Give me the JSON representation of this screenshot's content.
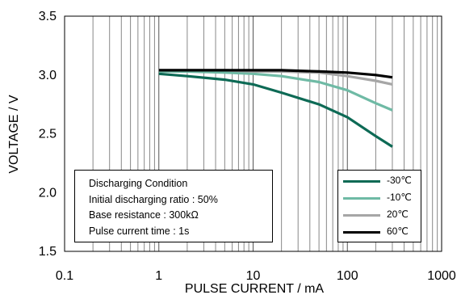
{
  "chart_data": {
    "type": "line",
    "xlabel": "PULSE CURRENT / mA",
    "ylabel": "VOLTAGE / V",
    "x_scale": "log",
    "xlim": [
      0.1,
      1000
    ],
    "ylim": [
      1.5,
      3.5
    ],
    "x_ticks": [
      "0.1",
      "1",
      "10",
      "100",
      "1000"
    ],
    "y_ticks": [
      "1.5",
      "2.0",
      "2.5",
      "3.0",
      "3.5"
    ],
    "grid": "vertical log grid lines",
    "legend_position": "bottom-right",
    "series": [
      {
        "name": "-30℃",
        "color": "#0d6a55",
        "x": [
          1,
          2,
          5,
          10,
          20,
          50,
          100,
          200,
          300
        ],
        "y": [
          3.01,
          2.99,
          2.96,
          2.92,
          2.85,
          2.75,
          2.64,
          2.48,
          2.39
        ]
      },
      {
        "name": "-10℃",
        "color": "#6fbaa5",
        "x": [
          1,
          2,
          5,
          10,
          20,
          50,
          100,
          200,
          300
        ],
        "y": [
          3.03,
          3.03,
          3.02,
          3.01,
          2.99,
          2.94,
          2.87,
          2.76,
          2.7
        ]
      },
      {
        "name": "20℃",
        "color": "#a6a6a6",
        "x": [
          1,
          2,
          5,
          10,
          20,
          50,
          100,
          200,
          300
        ],
        "y": [
          3.04,
          3.04,
          3.04,
          3.03,
          3.03,
          3.02,
          2.99,
          2.95,
          2.92
        ]
      },
      {
        "name": "60℃",
        "color": "#000000",
        "x": [
          1,
          2,
          5,
          10,
          20,
          50,
          100,
          200,
          300
        ],
        "y": [
          3.04,
          3.04,
          3.04,
          3.04,
          3.04,
          3.03,
          3.02,
          3.0,
          2.98
        ]
      }
    ],
    "annotation_lines": [
      "Discharging Condition",
      "Initial discharging ratio : 50%",
      "Base resistance : 300kΩ",
      "Pulse current time : 1s"
    ]
  }
}
